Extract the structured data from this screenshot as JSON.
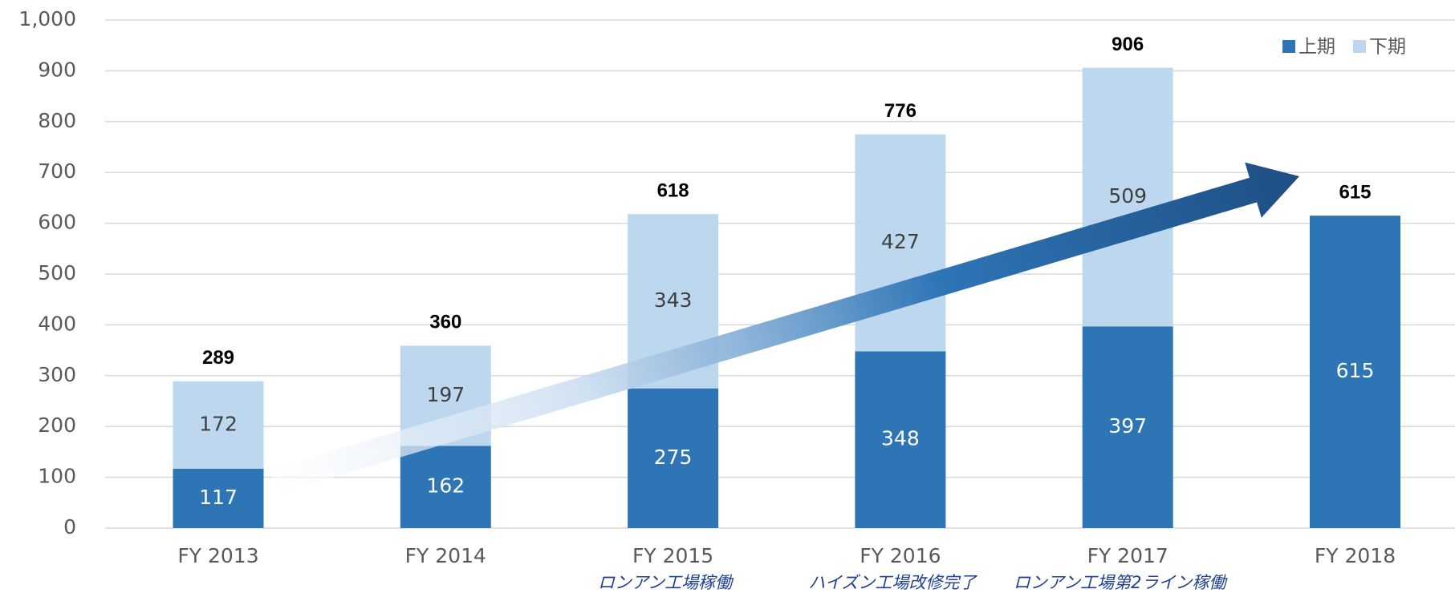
{
  "chart_data": {
    "type": "stacked_bar",
    "categories": [
      "FY 2013",
      "FY 2014",
      "FY 2015",
      "FY 2016",
      "FY 2017",
      "FY 2018"
    ],
    "category_notes": [
      null,
      null,
      "ロンアン工場稼働",
      "ハイズン工場改修完了",
      "ロンアン工場第2ライン稼働",
      null
    ],
    "series": [
      {
        "name": "上期",
        "color": "#2e75b6",
        "values": [
          117,
          162,
          275,
          348,
          397,
          615
        ]
      },
      {
        "name": "下期",
        "color": "#bdd7ee",
        "values": [
          172,
          197,
          343,
          427,
          509,
          null
        ]
      }
    ],
    "totals": [
      289,
      360,
      618,
      776,
      906,
      615
    ],
    "ylim": [
      0,
      1000
    ],
    "yticks": [
      0,
      100,
      200,
      300,
      400,
      500,
      600,
      700,
      800,
      900,
      {
        "value": 1000,
        "label": "1,000"
      }
    ],
    "grid": true,
    "legend": "top-right"
  }
}
